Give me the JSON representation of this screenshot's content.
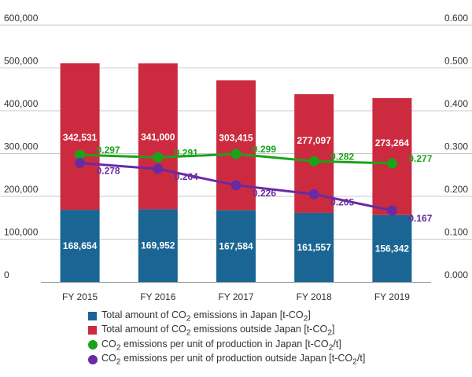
{
  "chart_data": {
    "type": "bar",
    "stacked": true,
    "categories": [
      "FY 2015",
      "FY 2016",
      "FY 2017",
      "FY 2018",
      "FY 2019"
    ],
    "series": [
      {
        "name": "Total amount of CO₂ emissions in Japan [t-CO₂]",
        "kind": "bar",
        "axis": "left",
        "color": "#1a6593",
        "values": [
          168654,
          169952,
          167584,
          161557,
          156342
        ],
        "labels": [
          "168,654",
          "169,952",
          "167,584",
          "161,557",
          "156,342"
        ]
      },
      {
        "name": "Total amount of CO₂ emissions outside Japan [t-CO₂]",
        "kind": "bar",
        "axis": "left",
        "color": "#cc2b3f",
        "values": [
          342531,
          341000,
          303415,
          277097,
          273264
        ],
        "labels": [
          "342,531",
          "341,000",
          "303,415",
          "277,097",
          "273,264"
        ]
      },
      {
        "name": "CO₂ emissions per unit of production in Japan [t-CO₂/t]",
        "kind": "line",
        "axis": "right",
        "color": "#1aa31a",
        "values": [
          0.297,
          0.291,
          0.299,
          0.282,
          0.277
        ],
        "labels": [
          "0.297",
          "0.291",
          "0.299",
          "0.282",
          "0.277"
        ]
      },
      {
        "name": "CO₂ emissions per unit of production outside Japan [t-CO₂/t]",
        "kind": "line",
        "axis": "right",
        "color": "#6a2aa4",
        "values": [
          0.278,
          0.264,
          0.226,
          0.205,
          0.167
        ],
        "labels": [
          "0.278",
          "0.264",
          "0.226",
          "0.205",
          "0.167"
        ]
      }
    ],
    "y_left": {
      "min": 0,
      "max": 600000,
      "ticks": [
        0,
        100000,
        200000,
        300000,
        400000,
        500000,
        600000
      ],
      "tick_labels": [
        "0",
        "100,000",
        "200,000",
        "300,000",
        "400,000",
        "500,000",
        "600,000"
      ]
    },
    "y_right": {
      "min": 0,
      "max": 0.6,
      "ticks": [
        0,
        0.1,
        0.2,
        0.3,
        0.4,
        0.5,
        0.6
      ],
      "tick_labels": [
        "0.000",
        "0.100",
        "0.200",
        "0.300",
        "0.400",
        "0.500",
        "0.600"
      ]
    },
    "grid": true,
    "legend_position": "bottom"
  },
  "legend": {
    "items": [
      {
        "pre": "Total amount of  CO",
        "sub": "2",
        "post": " emissions in Japan [t-CO",
        "sub2": "2",
        "post2": "]",
        "color": "#1a6593",
        "marker": "square"
      },
      {
        "pre": "Total amount of  CO",
        "sub": "2",
        "post": " emissions outside Japan [t-CO",
        "sub2": "2",
        "post2": "]",
        "color": "#cc2b3f",
        "marker": "square"
      },
      {
        "pre": "CO",
        "sub": "2",
        "post": " emissions per unit of production in Japan [t-CO",
        "sub2": "2",
        "post2": "/t]",
        "color": "#1aa31a",
        "marker": "circle"
      },
      {
        "pre": "CO",
        "sub": "2",
        "post": " emissions per unit of production outside Japan [t-CO",
        "sub2": "2",
        "post2": "/t]",
        "color": "#6a2aa4",
        "marker": "circle"
      }
    ]
  }
}
